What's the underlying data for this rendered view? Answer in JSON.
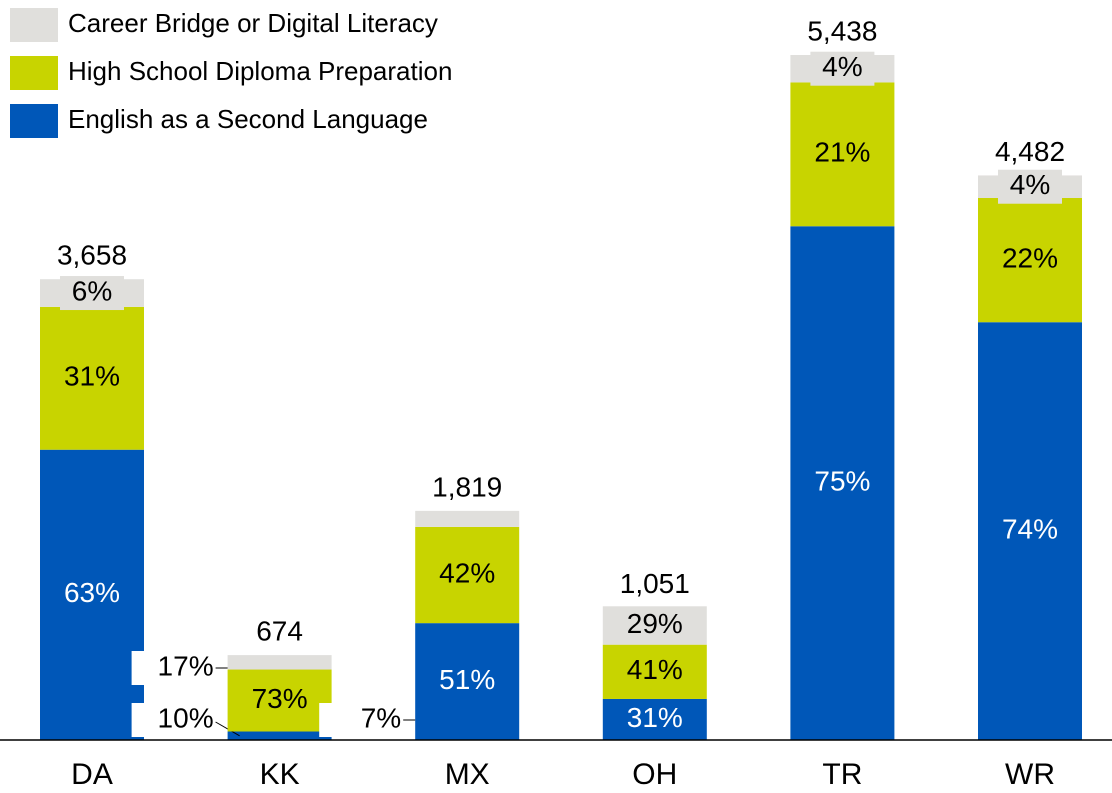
{
  "chart_data": {
    "type": "stacked_bar",
    "categories": [
      "DA",
      "KK",
      "MX",
      "OH",
      "TR",
      "WR"
    ],
    "series": [
      {
        "name": "English as a Second Language",
        "color": "#0057b8",
        "label_color": "#ffffff",
        "values": [
          63,
          10,
          51,
          31,
          75,
          74
        ],
        "value_labels": [
          "63%",
          "10%",
          "51%",
          "31%",
          "75%",
          "74%"
        ]
      },
      {
        "name": "High School Diploma Preparation",
        "color": "#c8d400",
        "label_color": "#000000",
        "values": [
          31,
          73,
          42,
          41,
          21,
          22
        ],
        "value_labels": [
          "31%",
          "73%",
          "42%",
          "41%",
          "21%",
          "22%"
        ]
      },
      {
        "name": "Career Bridge or Digital Literacy",
        "color": "#e0dfdc",
        "label_color": "#000000",
        "values": [
          6,
          17,
          7,
          29,
          4,
          4
        ],
        "value_labels": [
          "6%",
          "17%",
          "7%",
          "29%",
          "4%",
          "4%"
        ]
      }
    ],
    "totals": {
      "values": [
        3658,
        674,
        1819,
        1051,
        5438,
        4482
      ],
      "value_labels": [
        "3,658",
        "674",
        "1,819",
        "1,051",
        "5,438",
        "4,482"
      ]
    },
    "legend": "top-left"
  }
}
